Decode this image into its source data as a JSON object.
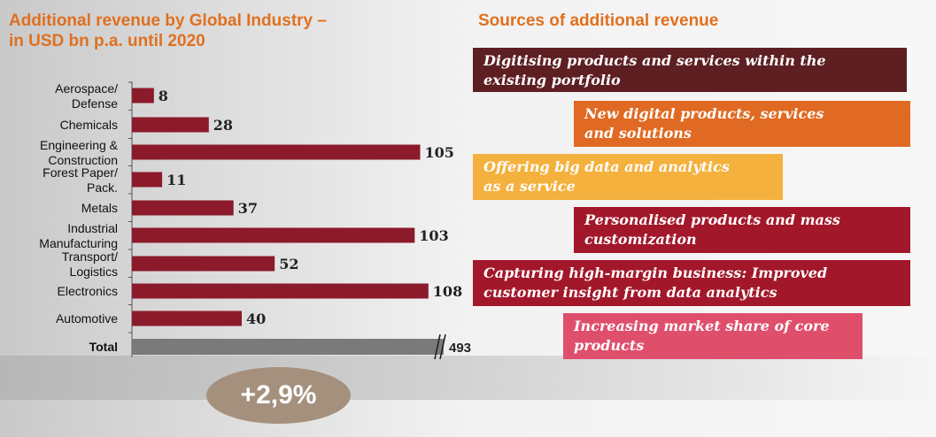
{
  "titles": {
    "left_line1": "Additional revenue by Global Industry –",
    "left_line2": "in USD bn  p.a. until 2020",
    "right": "Sources of additional revenue"
  },
  "chart_data": {
    "type": "bar",
    "orientation": "horizontal",
    "categories": [
      [
        "Aerospace/",
        "Defense"
      ],
      [
        "Chemicals"
      ],
      [
        "Engineering &",
        "Construction"
      ],
      [
        "Forest Paper/",
        "Pack."
      ],
      [
        "Metals"
      ],
      [
        "Industrial",
        "Manufacturing"
      ],
      [
        "Transport/",
        "Logistics"
      ],
      [
        "Electronics"
      ],
      [
        "Automotive"
      ]
    ],
    "values": [
      8,
      28,
      105,
      11,
      37,
      103,
      52,
      108,
      40
    ],
    "value_labels": [
      "8",
      "28",
      "105",
      "11",
      "37",
      "103",
      "52",
      "108",
      "40"
    ],
    "total": {
      "label": "Total",
      "value": 493,
      "value_label": "493",
      "axis_break": true
    },
    "bar_color": "#8b1a2b",
    "total_color": "#7a7a7a",
    "xlim": [
      0,
      110
    ]
  },
  "growth": {
    "label": "+2,9%"
  },
  "sources": [
    {
      "line1": "Digitising products and services within the",
      "line2": "existing portfolio",
      "color": "#5e1f22"
    },
    {
      "line1": "New digital products, services",
      "line2": "and solutions",
      "color": "#e06a23"
    },
    {
      "line1": "Offering big data and analytics",
      "line2": "as a service",
      "color": "#f5b13d"
    },
    {
      "line1": "Personalised products and mass",
      "line2": "customization",
      "color": "#a3172a"
    },
    {
      "line1": "Capturing high-margin business: Improved",
      "line2": "customer insight from data analytics",
      "color": "#a3172a"
    },
    {
      "line1": "Increasing market share of core",
      "line2": "products",
      "color": "#df4f6c"
    }
  ]
}
